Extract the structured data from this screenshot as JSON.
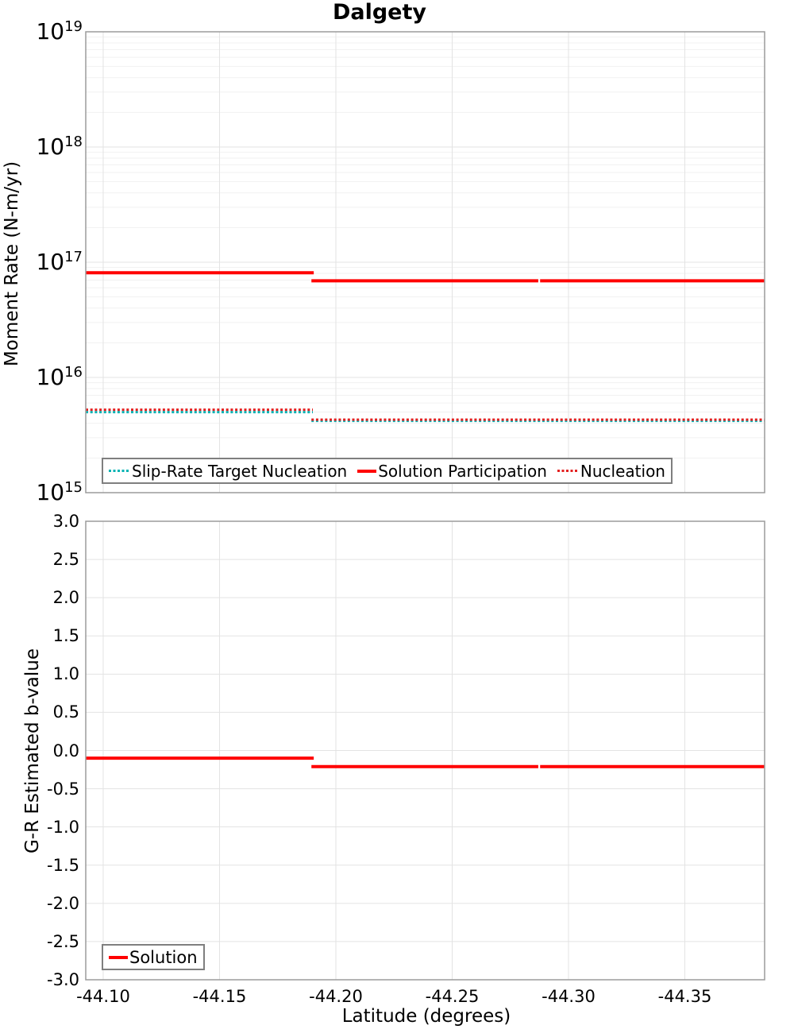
{
  "title": "Dalgety",
  "colors": {
    "solid_red": "#ff0000",
    "dotted_red": "#e32020",
    "teal": "#00b3b3",
    "grid_major": "#e3e3e3",
    "grid_minor": "#f1f1f1",
    "border": "#9b9b9b",
    "legend_border": "#7f7f7f",
    "text": "#000000"
  },
  "chart_data": [
    {
      "type": "line",
      "title": "Dalgety",
      "ylabel": "Moment Rate (N-m/yr)",
      "yscale": "log",
      "ylim": [
        1000000000000000.0,
        1e+19
      ],
      "xlim": [
        -44.0925,
        -44.3843
      ],
      "grid": true,
      "yticks": {
        "base": "10",
        "exponents": [
          "19",
          "18",
          "17",
          "16",
          "15"
        ],
        "values": [
          1e+19,
          1e+18,
          1e+17,
          1e+16,
          1000000000000000.0
        ]
      },
      "xgrid_values": [
        -44.1,
        -44.15,
        -44.2,
        -44.25,
        -44.3,
        -44.35
      ],
      "legend_position": "bottom-left",
      "legend": [
        "Slip-Rate Target Nucleation",
        "Solution Participation",
        "Nucleation"
      ],
      "series": [
        {
          "name": "Slip-Rate Target Nucleation",
          "color_key": "teal",
          "style": "dotted",
          "width": 3,
          "segments": [
            {
              "x1": -44.0925,
              "x2": -44.1901,
              "y": 5000000000000000.0
            },
            {
              "x1": -44.1895,
              "x2": -44.3843,
              "y": 4200000000000000.0
            }
          ]
        },
        {
          "name": "Solution Participation",
          "color_key": "solid_red",
          "style": "solid",
          "width": 4,
          "segments": [
            {
              "x1": -44.0925,
              "x2": -44.1905,
              "y": 8.1e+16
            },
            {
              "x1": -44.1895,
              "x2": -44.287,
              "y": 6.9e+16
            },
            {
              "x1": -44.2878,
              "x2": -44.3843,
              "y": 6.9e+16
            }
          ]
        },
        {
          "name": "Nucleation",
          "color_key": "dotted_red",
          "style": "dotted",
          "width": 3,
          "segments": [
            {
              "x1": -44.0925,
              "x2": -44.1901,
              "y": 5250000000000000.0
            },
            {
              "x1": -44.1895,
              "x2": -44.3843,
              "y": 4300000000000000.0
            }
          ]
        }
      ]
    },
    {
      "type": "line",
      "ylabel": "G-R Estimated b-value",
      "xlabel": "Latitude (degrees)",
      "yscale": "linear",
      "ylim": [
        -3.0,
        3.0
      ],
      "xlim": [
        -44.0925,
        -44.3843
      ],
      "grid": true,
      "yticks": {
        "values": [
          3.0,
          2.5,
          2.0,
          1.5,
          1.0,
          0.5,
          0.0,
          -0.5,
          -1.0,
          -1.5,
          -2.0,
          -2.5,
          -3.0
        ],
        "labels": [
          "3.0",
          "2.5",
          "2.0",
          "1.5",
          "1.0",
          "0.5",
          "0.0",
          "-0.5",
          "-1.0",
          "-1.5",
          "-2.0",
          "-2.5",
          "-3.0"
        ]
      },
      "xticks": {
        "values": [
          -44.1,
          -44.15,
          -44.2,
          -44.25,
          -44.3,
          -44.35
        ],
        "labels": [
          "-44.10",
          "-44.15",
          "-44.20",
          "-44.25",
          "-44.30",
          "-44.35"
        ]
      },
      "xgrid_values": [
        -44.1,
        -44.15,
        -44.2,
        -44.25,
        -44.3,
        -44.35
      ],
      "legend_position": "bottom-left",
      "legend": [
        "Solution"
      ],
      "series": [
        {
          "name": "Solution",
          "color_key": "solid_red",
          "style": "solid",
          "width": 4,
          "segments": [
            {
              "x1": -44.0925,
              "x2": -44.1905,
              "y": -0.1
            },
            {
              "x1": -44.1895,
              "x2": -44.287,
              "y": -0.21
            },
            {
              "x1": -44.2878,
              "x2": -44.3843,
              "y": -0.21
            }
          ]
        }
      ]
    }
  ]
}
